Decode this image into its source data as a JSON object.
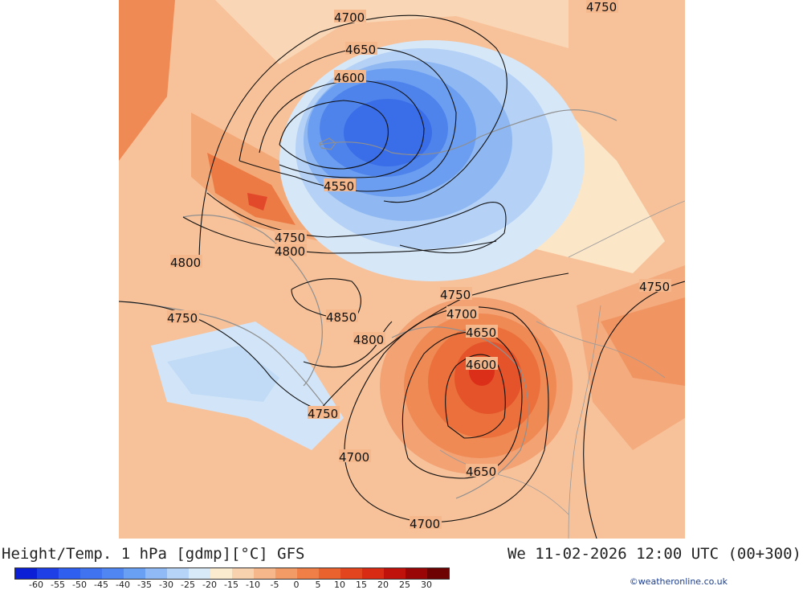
{
  "header": {
    "title": "Height/Temp. 1 hPa [gdmp][°C] GFS",
    "valid_time": "We 11-02-2026 12:00 UTC (00+300)"
  },
  "map": {
    "contour_labels": [
      "4750",
      "4700",
      "4650",
      "4600",
      "4550",
      "4750",
      "4800",
      "4800",
      "4850",
      "4750",
      "4800",
      "4750",
      "4700",
      "4650",
      "4600",
      "4750",
      "4700",
      "4650",
      "4700",
      "4750"
    ]
  },
  "legend": {
    "ticks": [
      "-60",
      "-55",
      "-50",
      "-45",
      "-40",
      "-35",
      "-30",
      "-25",
      "-20",
      "-15",
      "-10",
      "-5",
      "0",
      "5",
      "10",
      "15",
      "20",
      "25",
      "30"
    ],
    "colors": [
      "#0a1fd6",
      "#1f3fe6",
      "#2f5fee",
      "#3f73f0",
      "#4f86f2",
      "#6aa0f4",
      "#8fbaf6",
      "#b6d4f8",
      "#d8e9f8",
      "#fbeccf",
      "#f8d2ae",
      "#f6b78a",
      "#f39b67",
      "#ef7f47",
      "#ea632f",
      "#e3451e",
      "#d92a14",
      "#c0110b",
      "#9a0606",
      "#6e0202"
    ],
    "credit": "©weatheronline.co.uk"
  }
}
